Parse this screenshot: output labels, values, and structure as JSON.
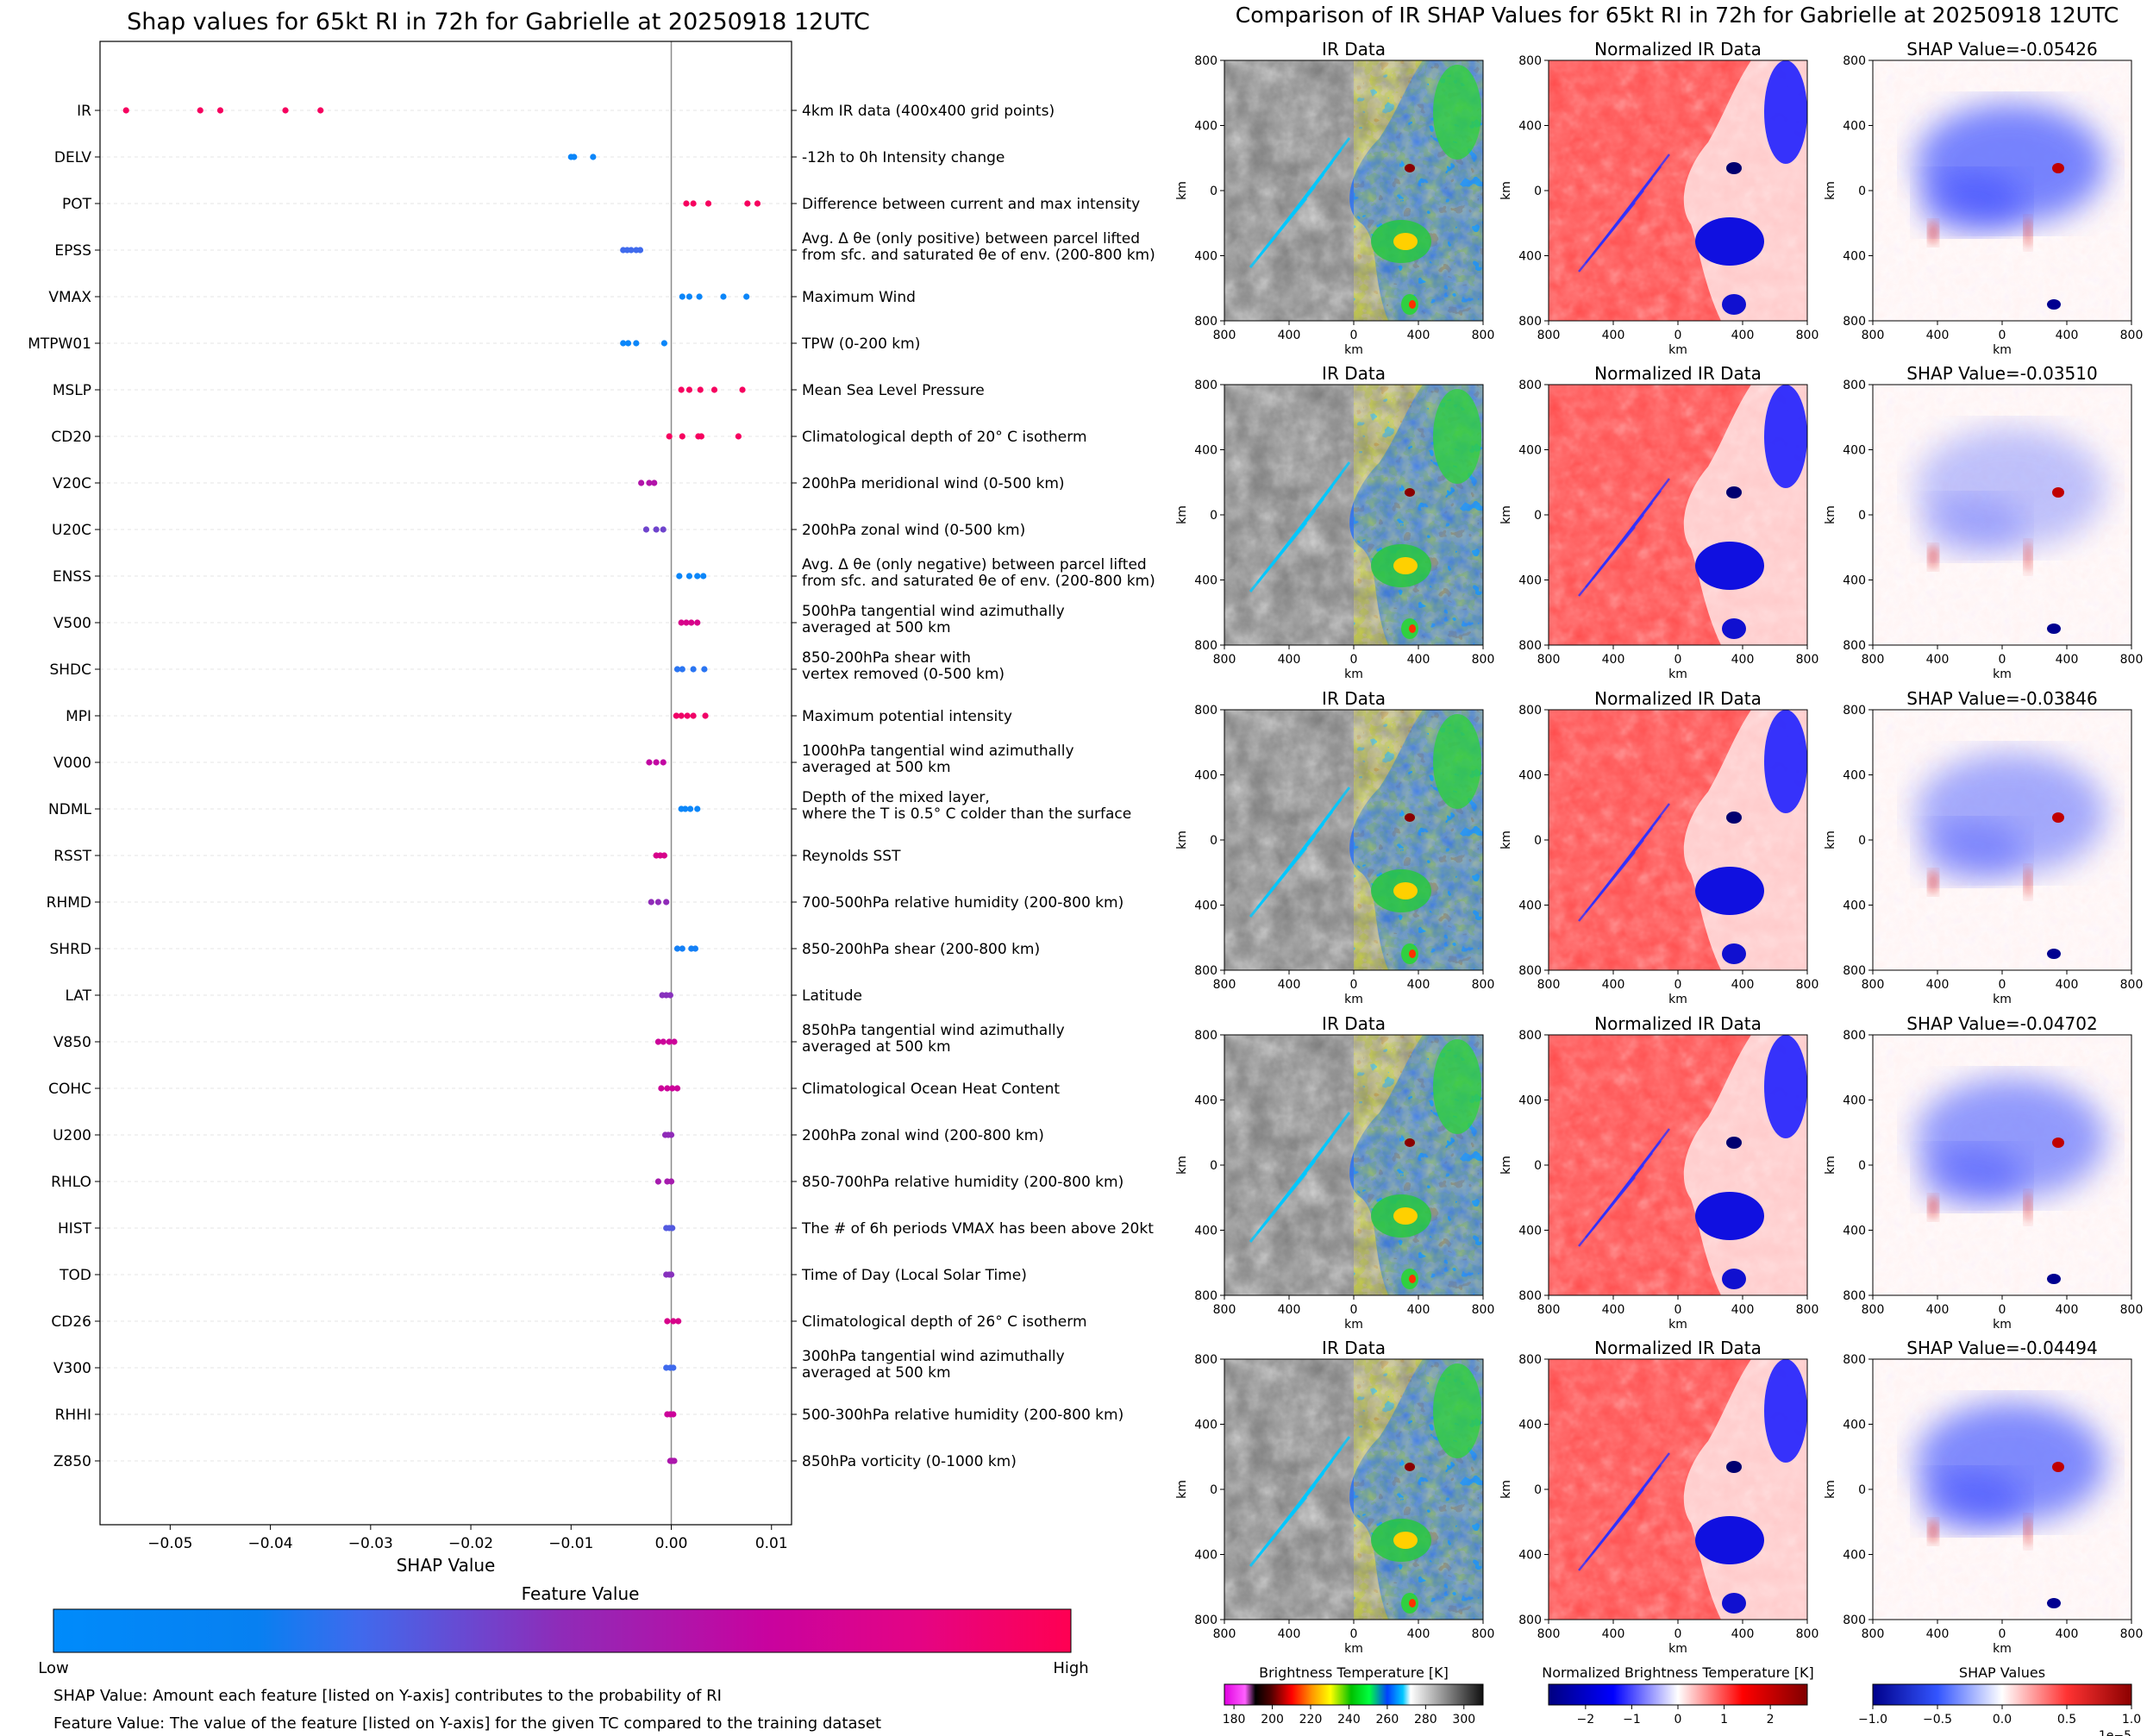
{
  "chart_data": [
    {
      "type": "scatter",
      "title": "Shap values for 65kt RI in 72h for Gabrielle at 20250918 12UTC",
      "xlabel": "SHAP Value",
      "xlim": [
        -0.057,
        0.012
      ],
      "xticks": [
        -0.05,
        -0.04,
        -0.03,
        -0.02,
        -0.01,
        0.0,
        0.01
      ],
      "xtick_labels": [
        "−0.05",
        "−0.04",
        "−0.03",
        "−0.02",
        "−0.01",
        "0.00",
        "0.01"
      ],
      "colorbar": {
        "title": "Feature Value",
        "low_label": "Low",
        "high_label": "High",
        "low_color": "#008bfb",
        "high_color": "#ff0052"
      },
      "notes": [
        "SHAP Value: Amount each feature [listed on Y-axis] contributes to the probability of RI",
        "Feature Value: The value of the feature [listed on Y-axis] for the given TC compared to the training dataset"
      ],
      "features": [
        {
          "name": "IR",
          "description": [
            "4km IR data (400x400 grid points)"
          ],
          "values": [
            -0.0544,
            -0.047,
            -0.045,
            -0.0385,
            -0.035
          ],
          "fv": 0.95
        },
        {
          "name": "DELV",
          "description": [
            "-12h to 0h Intensity change"
          ],
          "values": [
            -0.01,
            -0.0097,
            -0.0078
          ],
          "fv": 0.05
        },
        {
          "name": "POT",
          "description": [
            "Difference between current and max intensity"
          ],
          "values": [
            0.0015,
            0.0022,
            0.0037,
            0.0076,
            0.0086
          ],
          "fv": 0.95
        },
        {
          "name": "EPSS",
          "description": [
            "Avg. Δ θe (only positive) between parcel lifted",
            "from sfc. and saturated θe of env. (200-800 km)"
          ],
          "values": [
            -0.0048,
            -0.0044,
            -0.004,
            -0.0035,
            -0.0031
          ],
          "fv": 0.3
        },
        {
          "name": "VMAX",
          "description": [
            "Maximum Wind"
          ],
          "values": [
            0.0011,
            0.0018,
            0.0028,
            0.0052,
            0.0075
          ],
          "fv": 0.05
        },
        {
          "name": "MTPW01",
          "description": [
            "TPW (0-200 km)"
          ],
          "values": [
            -0.0048,
            -0.0043,
            -0.0035,
            -0.0007
          ],
          "fv": 0.05
        },
        {
          "name": "MSLP",
          "description": [
            "Mean Sea Level Pressure"
          ],
          "values": [
            0.001,
            0.0018,
            0.0029,
            0.0043,
            0.0071
          ],
          "fv": 0.95
        },
        {
          "name": "CD20",
          "description": [
            "Climatological depth of 20° C isotherm"
          ],
          "values": [
            -0.0002,
            0.0011,
            0.0027,
            0.003,
            0.0067
          ],
          "fv": 0.95
        },
        {
          "name": "V20C",
          "description": [
            "200hPa meridional wind (0-500 km)"
          ],
          "values": [
            -0.003,
            -0.0022,
            -0.0017
          ],
          "fv": 0.62
        },
        {
          "name": "U20C",
          "description": [
            "200hPa zonal wind (0-500 km)"
          ],
          "values": [
            -0.0025,
            -0.0015,
            -0.0008
          ],
          "fv": 0.42
        },
        {
          "name": "ENSS",
          "description": [
            "Avg. Δ θe (only negative) between parcel lifted",
            "from sfc. and saturated θe of env. (200-800 km)"
          ],
          "values": [
            0.0008,
            0.0018,
            0.0026,
            0.0032
          ],
          "fv": 0.05
        },
        {
          "name": "V500",
          "description": [
            "500hPa tangential wind azimuthally",
            "averaged at 500 km"
          ],
          "values": [
            0.001,
            0.0015,
            0.002,
            0.0026
          ],
          "fv": 0.78
        },
        {
          "name": "SHDC",
          "description": [
            "850-200hPa shear with",
            "vertex removed (0-500 km)"
          ],
          "values": [
            0.0006,
            0.0011,
            0.0022,
            0.0033
          ],
          "fv": 0.2
        },
        {
          "name": "MPI",
          "description": [
            "Maximum potential intensity"
          ],
          "values": [
            0.0005,
            0.001,
            0.0016,
            0.0022,
            0.0034
          ],
          "fv": 0.92
        },
        {
          "name": "V000",
          "description": [
            "1000hPa tangential wind azimuthally",
            "averaged at 500 km"
          ],
          "values": [
            -0.0022,
            -0.0015,
            -0.0008
          ],
          "fv": 0.68
        },
        {
          "name": "NDML",
          "description": [
            "Depth of the mixed layer,",
            "where the T is 0.5° C colder than the surface"
          ],
          "values": [
            0.001,
            0.0014,
            0.0019,
            0.0026
          ],
          "fv": 0.05
        },
        {
          "name": "RSST",
          "description": [
            "Reynolds SST"
          ],
          "values": [
            -0.0015,
            -0.0011,
            -0.0007
          ],
          "fv": 0.78
        },
        {
          "name": "RHMD",
          "description": [
            "700-500hPa relative humidity (200-800 km)"
          ],
          "values": [
            -0.002,
            -0.0013,
            -0.0005
          ],
          "fv": 0.5
        },
        {
          "name": "SHRD",
          "description": [
            "850-200hPa shear (200-800 km)"
          ],
          "values": [
            0.0006,
            0.0011,
            0.002,
            0.0024
          ],
          "fv": 0.1
        },
        {
          "name": "LAT",
          "description": [
            "Latitude"
          ],
          "values": [
            -0.0009,
            -0.0005,
            -0.0001
          ],
          "fv": 0.48
        },
        {
          "name": "V850",
          "description": [
            "850hPa tangential wind azimuthally",
            "averaged at 500 km"
          ],
          "values": [
            -0.0013,
            -0.0008,
            -0.0002,
            0.0003
          ],
          "fv": 0.72
        },
        {
          "name": "COHC",
          "description": [
            "Climatological Ocean Heat Content"
          ],
          "values": [
            -0.001,
            -0.0004,
            0.0001,
            0.0006
          ],
          "fv": 0.72
        },
        {
          "name": "U200",
          "description": [
            "200hPa zonal wind (200-800 km)"
          ],
          "values": [
            -0.0006,
            -0.0003,
            0.0
          ],
          "fv": 0.5
        },
        {
          "name": "RHLO",
          "description": [
            "850-700hPa relative humidity (200-800 km)"
          ],
          "values": [
            -0.0013,
            -0.0004,
            0.0
          ],
          "fv": 0.58
        },
        {
          "name": "HIST",
          "description": [
            "The # of 6h periods VMAX has been above 20kt"
          ],
          "values": [
            -0.0005,
            -0.0002,
            0.0001
          ],
          "fv": 0.35
        },
        {
          "name": "TOD",
          "description": [
            "Time of Day (Local Solar Time)"
          ],
          "values": [
            -0.0005,
            -0.0002,
            0.0
          ],
          "fv": 0.48
        },
        {
          "name": "CD26",
          "description": [
            "Climatological depth of 26° C isotherm"
          ],
          "values": [
            -0.0004,
            0.0002,
            0.0007
          ],
          "fv": 0.78
        },
        {
          "name": "V300",
          "description": [
            "300hPa tangential wind azimuthally",
            "averaged at 500 km"
          ],
          "values": [
            -0.0005,
            -0.0001,
            0.0002
          ],
          "fv": 0.3
        },
        {
          "name": "RHHI",
          "description": [
            "500-300hPa relative humidity (200-800 km)"
          ],
          "values": [
            -0.0004,
            -0.0001,
            0.0002
          ],
          "fv": 0.72
        },
        {
          "name": "Z850",
          "description": [
            "850hPa vorticity (0-1000 km)"
          ],
          "values": [
            -0.0001,
            0.0001,
            0.0003
          ],
          "fv": 0.6
        }
      ]
    },
    {
      "type": "heatmap",
      "title": "Comparison of IR SHAP Values for 65kt RI in 72h for Gabrielle at 20250918 12UTC",
      "panel_titles": [
        "IR Data",
        "Normalized IR Data"
      ],
      "shap_values": [
        "SHAP Value=-0.05426",
        "SHAP Value=-0.03510",
        "SHAP Value=-0.03846",
        "SHAP Value=-0.04702",
        "SHAP Value=-0.04494"
      ],
      "axis_label": "km",
      "axis_ticks": [
        "800",
        "400",
        "0",
        "400",
        "800"
      ],
      "colorbars": [
        {
          "title": "Brightness Temperature [K]",
          "ticks": [
            "180",
            "200",
            "220",
            "240",
            "260",
            "280",
            "300"
          ],
          "range": [
            175,
            310
          ]
        },
        {
          "title": "Normalized Brightness Temperature [K]",
          "ticks": [
            "−2",
            "−1",
            "0",
            "1",
            "2"
          ],
          "range": [
            -2.8,
            2.8
          ]
        },
        {
          "title": "SHAP Values",
          "ticks": [
            "−1.0",
            "−0.5",
            "0.0",
            "0.5",
            "1.0"
          ],
          "range": [
            -1,
            1
          ],
          "offset": "1e−5"
        }
      ]
    }
  ],
  "colors": {
    "low": "#008bfb",
    "high": "#ff0052",
    "zero_line": "#8c8c8c",
    "grid": "#e6e6e6"
  }
}
